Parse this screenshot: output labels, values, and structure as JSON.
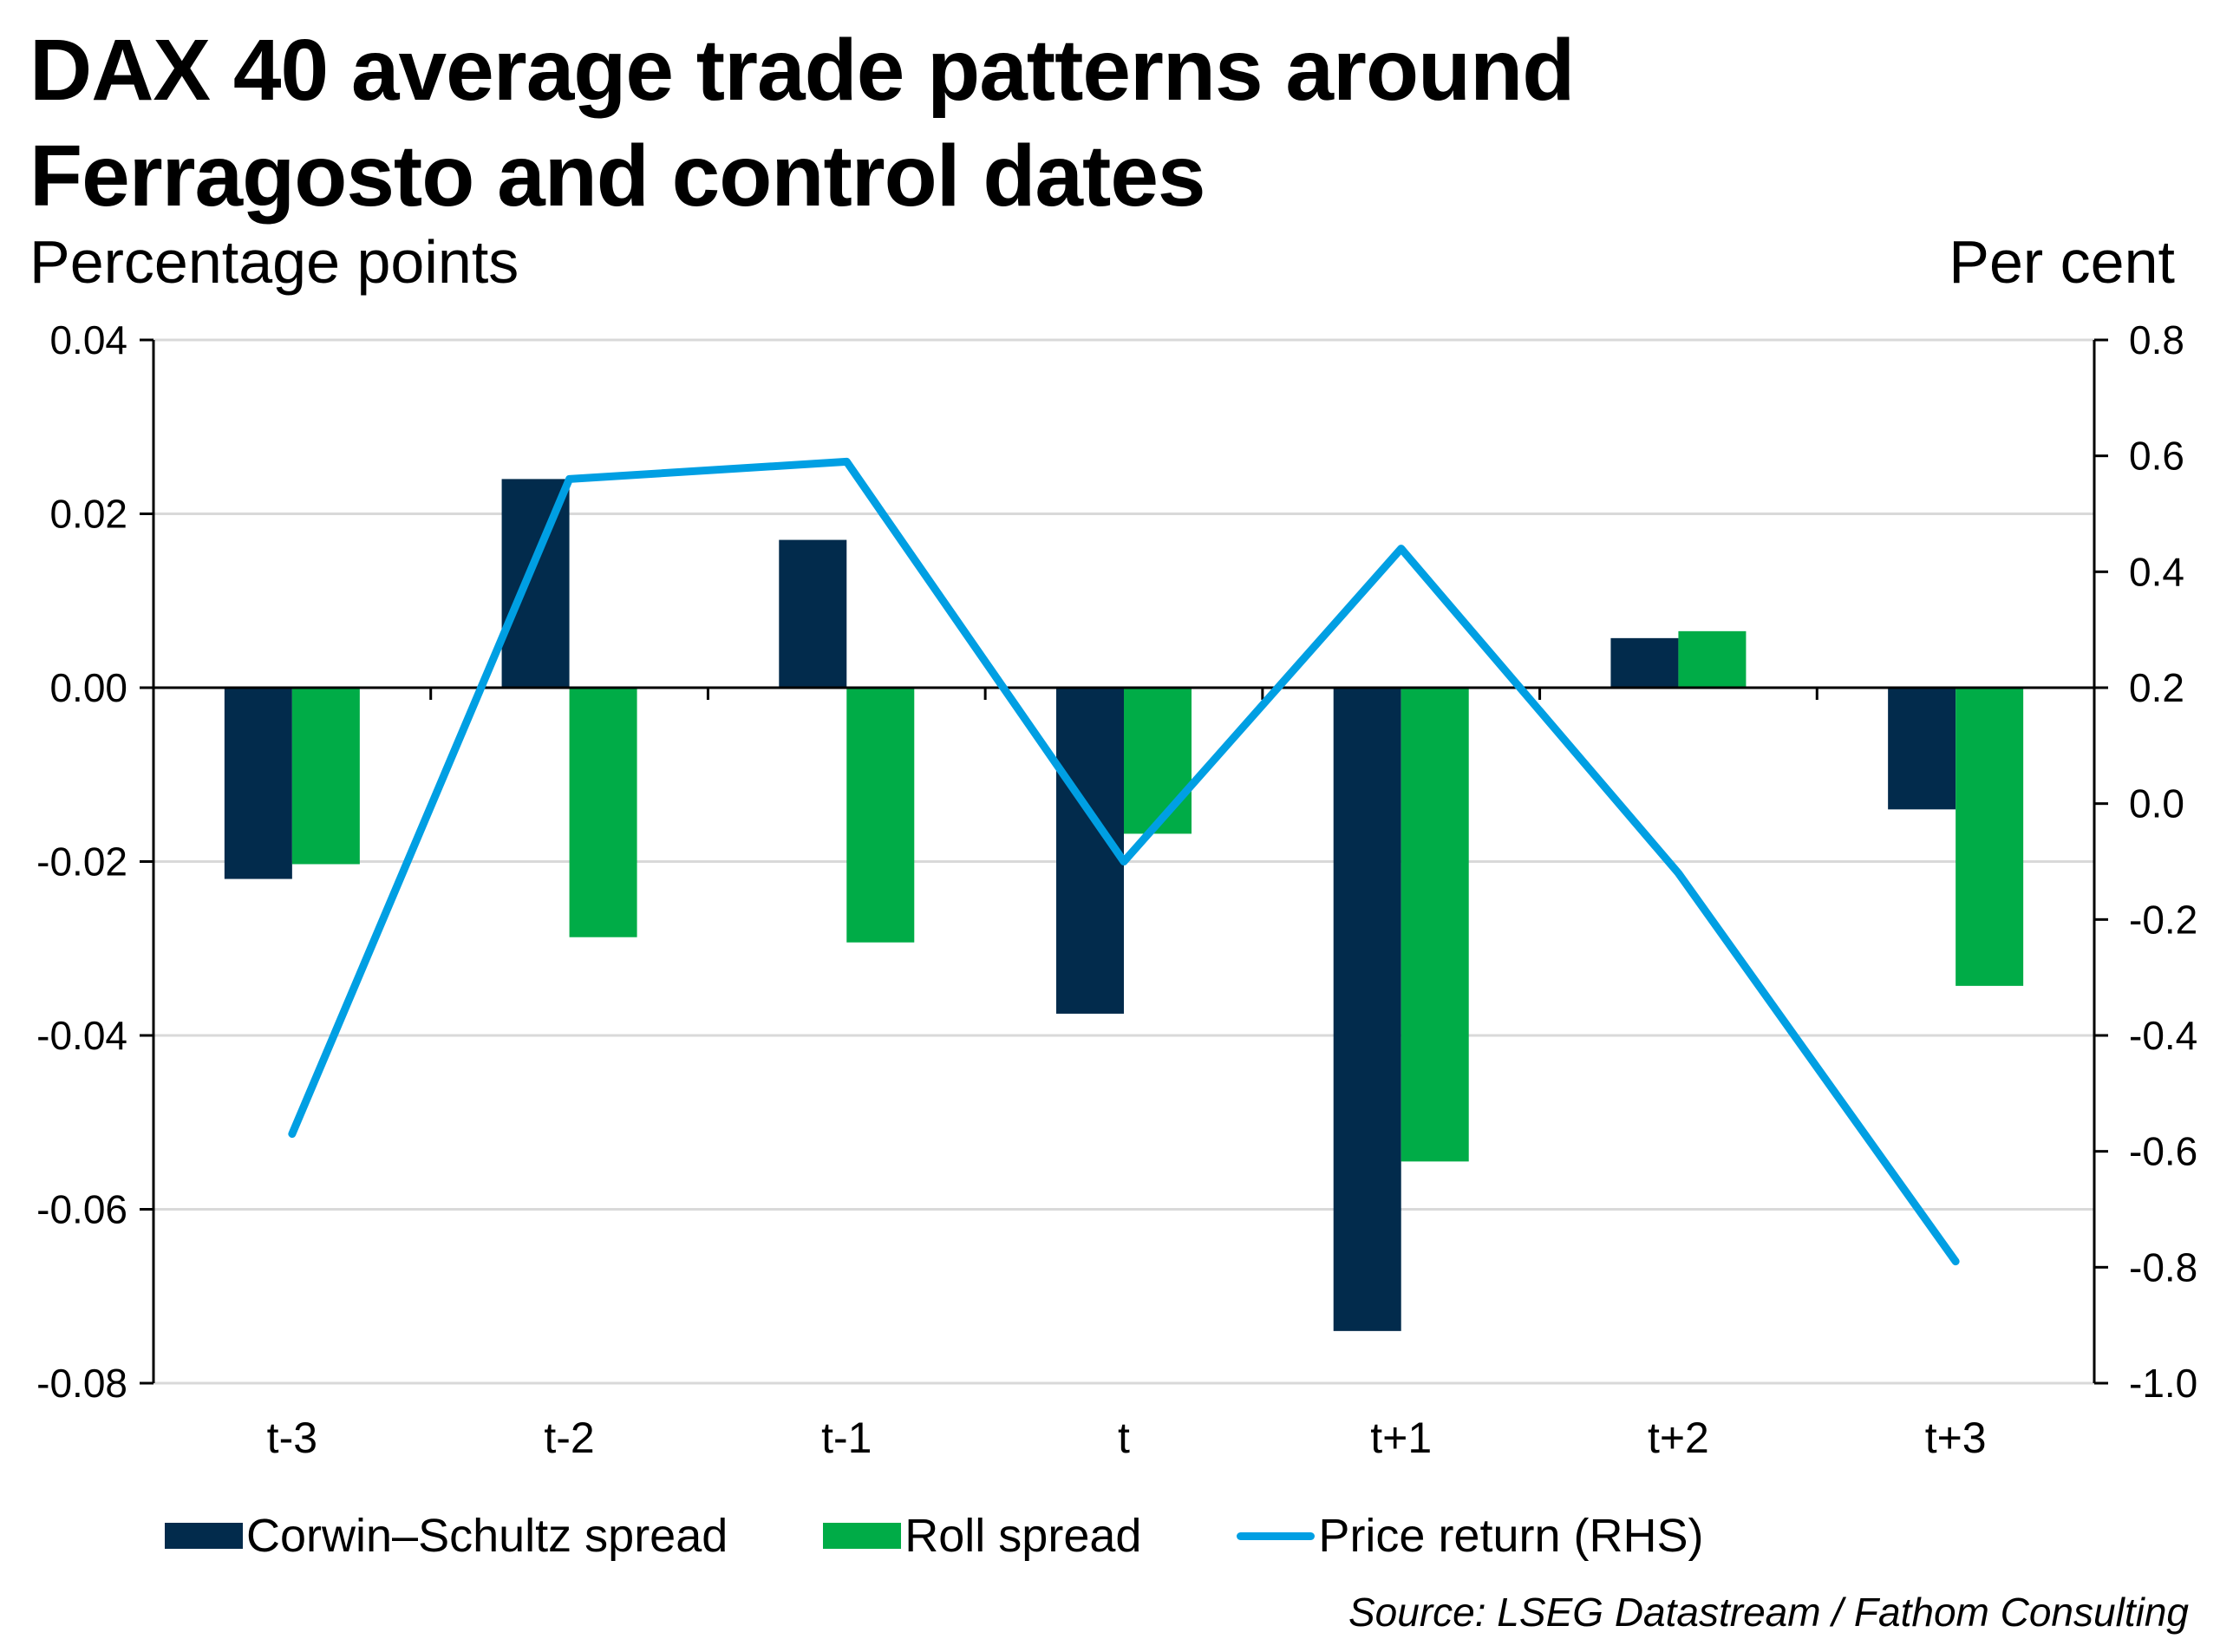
{
  "colors": {
    "corwin_schultz": "#022B4C",
    "roll": "#00AC47",
    "price_return": "#009FE3",
    "gridline": "#D9D9D9",
    "axis": "#000000"
  },
  "chart_data": {
    "type": "bar",
    "title": "DAX 40 average trade patterns around Ferragosto and control dates",
    "title_lines": [
      "DAX 40 average trade patterns around",
      "Ferragosto and control dates"
    ],
    "ylabel": "Percentage points",
    "ylabel_right": "Per cent",
    "xlabel": "",
    "categories": [
      "t-3",
      "t-2",
      "t-1",
      "t",
      "t+1",
      "t+2",
      "t+3"
    ],
    "ylim": [
      -0.08,
      0.04
    ],
    "yticks": [
      "0.04",
      "0.02",
      "0.00",
      "-0.02",
      "-0.04",
      "-0.06",
      "-0.08"
    ],
    "ylim_right": [
      -1.0,
      0.8
    ],
    "yticks_right": [
      "0.8",
      "0.6",
      "0.4",
      "0.2",
      "0.0",
      "-0.2",
      "-0.4",
      "-0.6",
      "-0.8",
      "-1.0"
    ],
    "grid": true,
    "legend_position": "bottom",
    "series": [
      {
        "name": "Corwin–Schultz spread",
        "type": "bar",
        "axis": "left",
        "values": [
          -0.022,
          0.024,
          0.017,
          -0.0375,
          -0.074,
          0.0057,
          -0.014
        ]
      },
      {
        "name": "Roll spread",
        "type": "bar",
        "axis": "left",
        "values": [
          -0.0203,
          -0.0287,
          -0.0293,
          -0.0168,
          -0.0545,
          0.0065,
          -0.0343
        ]
      },
      {
        "name": "Price return (RHS)",
        "type": "line",
        "axis": "right",
        "values": [
          -0.57,
          0.56,
          0.59,
          -0.1,
          0.44,
          -0.12,
          -0.79
        ]
      }
    ],
    "source": "Source: LSEG Datastream / Fathom Consulting"
  }
}
